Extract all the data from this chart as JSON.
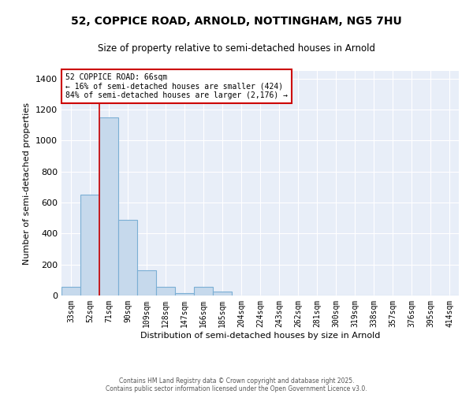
{
  "title_line1": "52, COPPICE ROAD, ARNOLD, NOTTINGHAM, NG5 7HU",
  "title_line2": "Size of property relative to semi-detached houses in Arnold",
  "xlabel": "Distribution of semi-detached houses by size in Arnold",
  "ylabel": "Number of semi-detached properties",
  "categories": [
    "33sqm",
    "52sqm",
    "71sqm",
    "90sqm",
    "109sqm",
    "128sqm",
    "147sqm",
    "166sqm",
    "185sqm",
    "204sqm",
    "224sqm",
    "243sqm",
    "262sqm",
    "281sqm",
    "300sqm",
    "319sqm",
    "338sqm",
    "357sqm",
    "376sqm",
    "395sqm",
    "414sqm"
  ],
  "values": [
    55,
    650,
    1150,
    490,
    165,
    55,
    15,
    55,
    25,
    0,
    0,
    0,
    0,
    0,
    0,
    0,
    0,
    0,
    0,
    0,
    0
  ],
  "bar_color": "#c6d9ec",
  "bar_edge_color": "#7bafd4",
  "bar_linewidth": 0.8,
  "red_line_x": 1.5,
  "highlight_label": "52 COPPICE ROAD: 66sqm",
  "annotation_line1": "← 16% of semi-detached houses are smaller (424)",
  "annotation_line2": "84% of semi-detached houses are larger (2,176) →",
  "box_color": "#cc0000",
  "ylim": [
    0,
    1450
  ],
  "yticks": [
    0,
    200,
    400,
    600,
    800,
    1000,
    1200,
    1400
  ],
  "bg_color": "#e8eef8",
  "footer_line1": "Contains HM Land Registry data © Crown copyright and database right 2025.",
  "footer_line2": "Contains public sector information licensed under the Open Government Licence v3.0."
}
